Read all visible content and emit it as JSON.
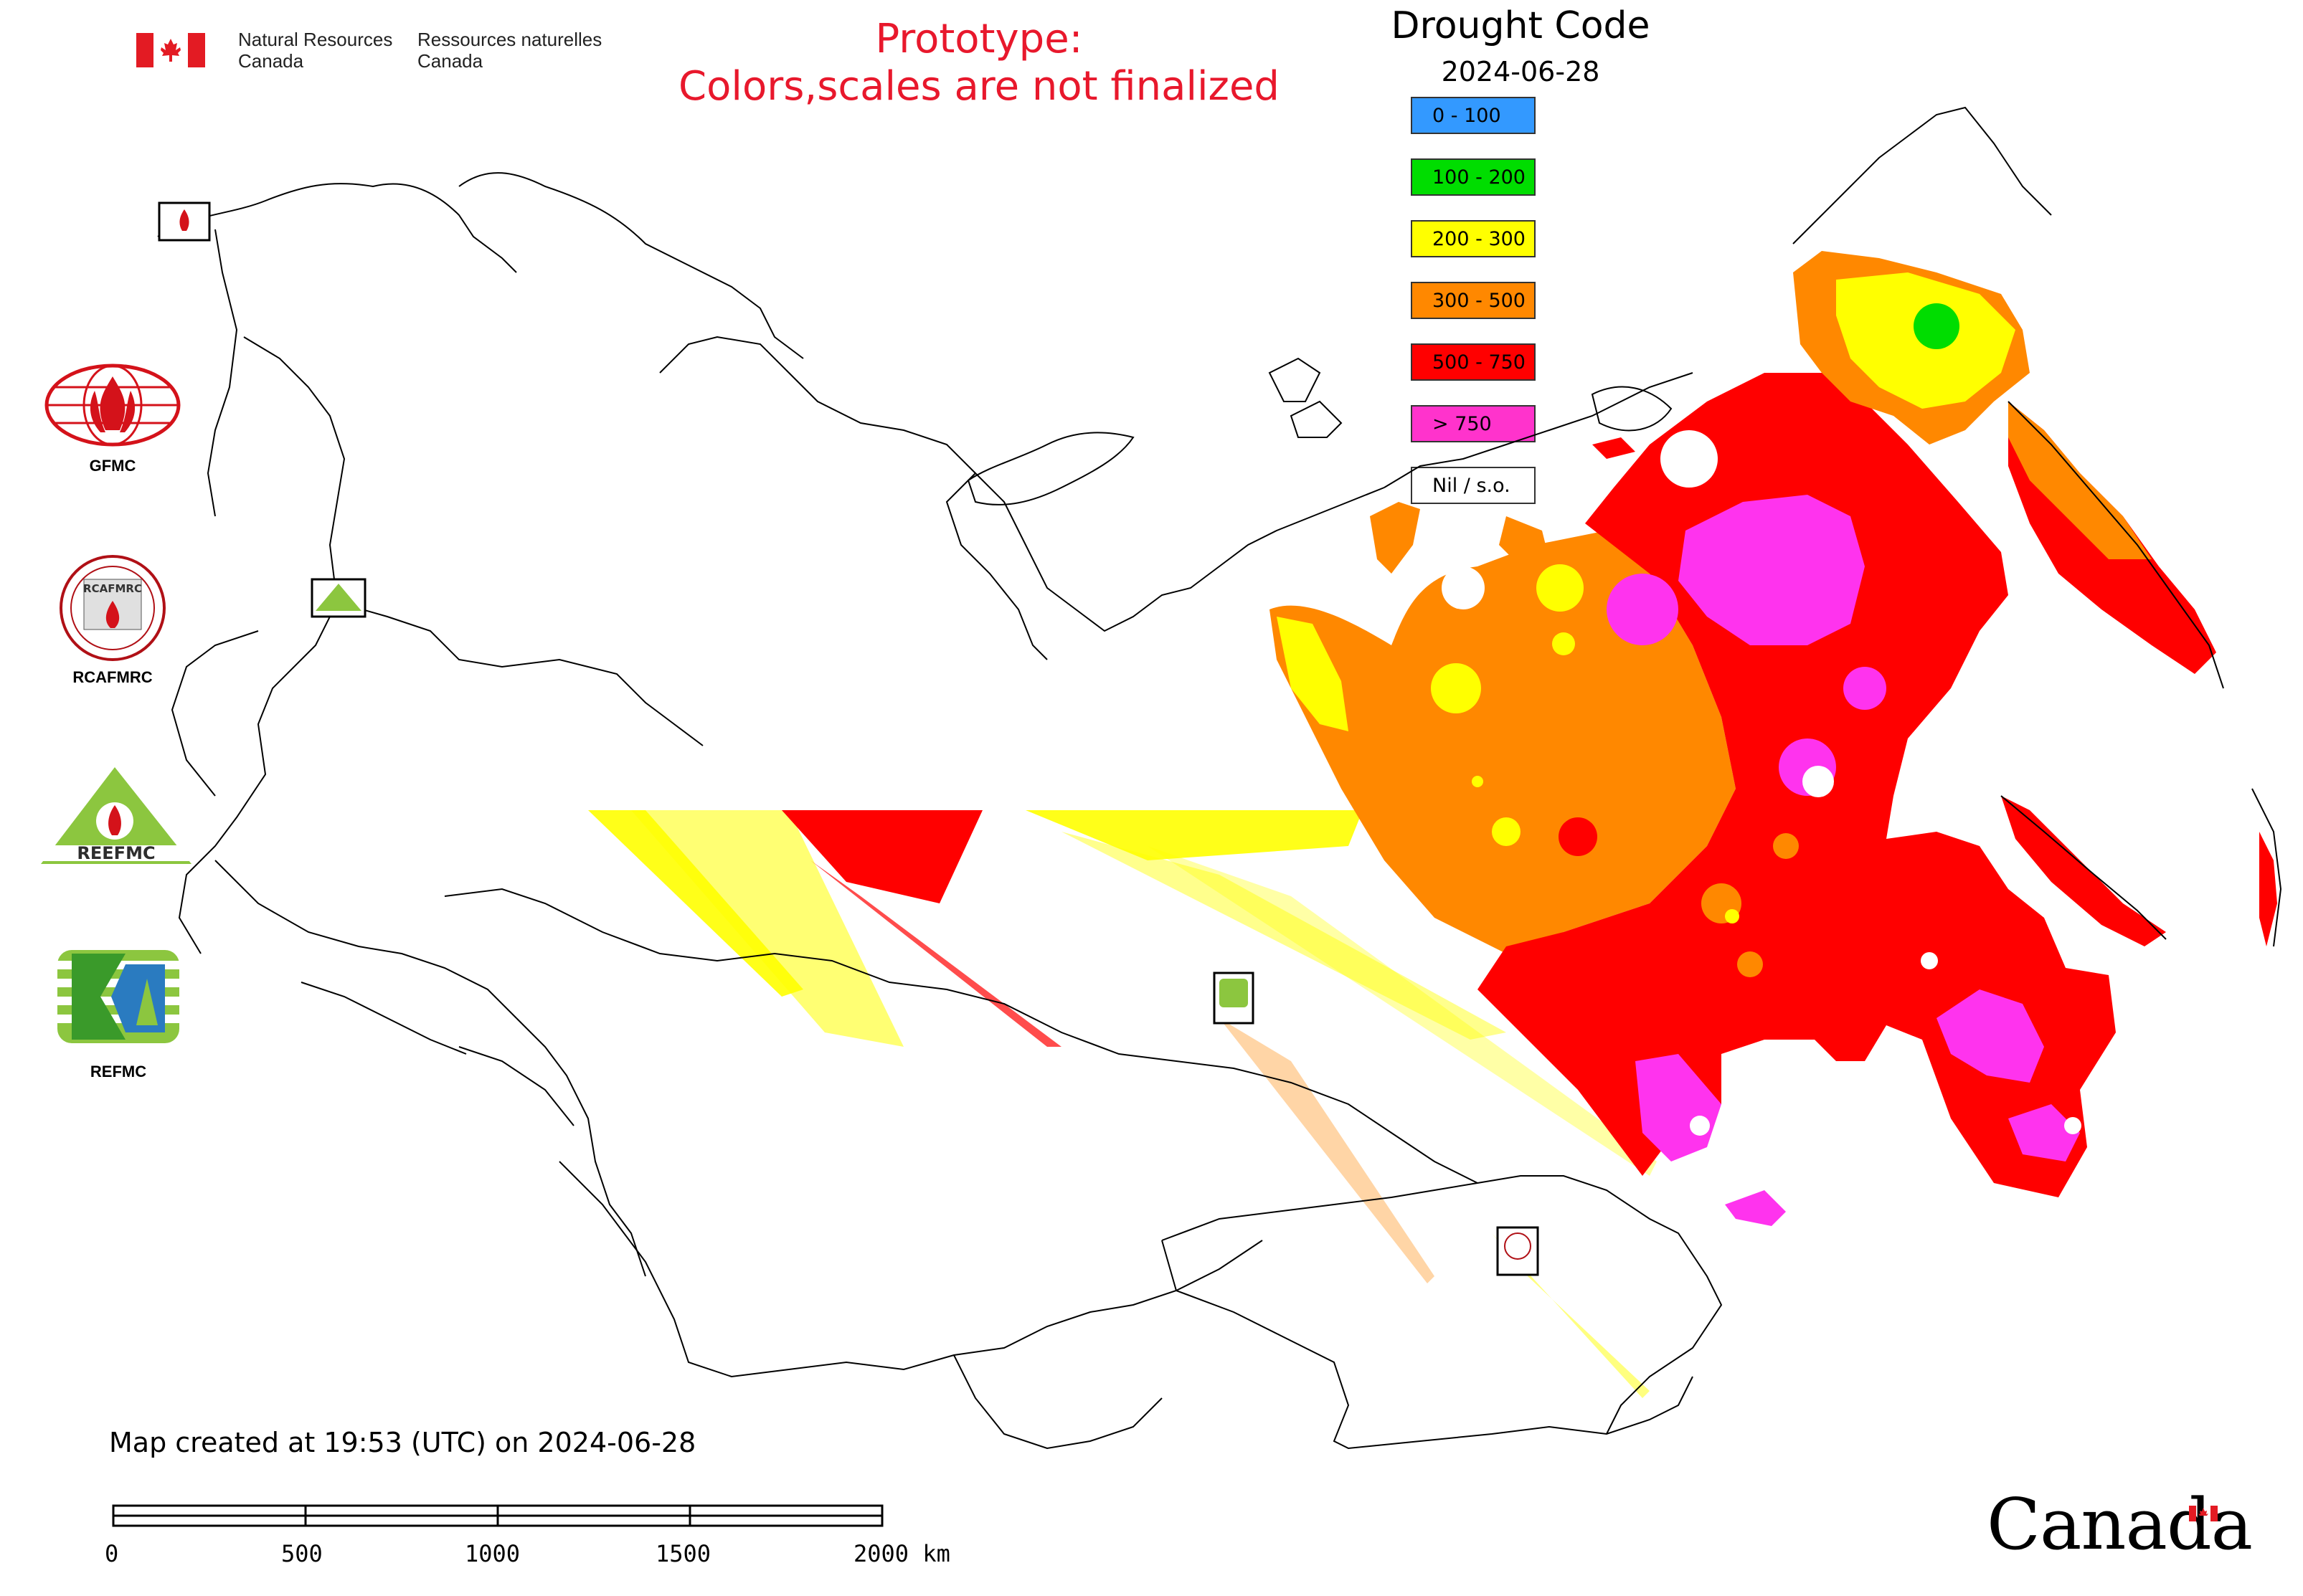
{
  "header": {
    "dept_en_line1": "Natural Resources",
    "dept_en_line2": "Canada",
    "dept_fr_line1": "Ressources naturelles",
    "dept_fr_line2": "Canada"
  },
  "prototype_notice": {
    "line1": "Prototype:",
    "line2": "Colors,scales are not finalized",
    "color": "#e8182c"
  },
  "legend": {
    "title": "Drought Code",
    "date": "2024-06-28",
    "items": [
      {
        "label": "0 - 100",
        "color": "#3399ff"
      },
      {
        "label": "100 - 200",
        "color": "#00dd00"
      },
      {
        "label": "200 - 300",
        "color": "#ffff00"
      },
      {
        "label": "300 - 500",
        "color": "#ff8800"
      },
      {
        "label": "500 - 750",
        "color": "#ff0000"
      },
      {
        "label": "> 750",
        "color": "#ff33cc"
      },
      {
        "label": "Nil / s.o.",
        "color": "#ffffff"
      }
    ]
  },
  "logos": [
    {
      "name": "GFMC",
      "label": "GFMC"
    },
    {
      "name": "RCAFMRC",
      "label": "RCAFMRC"
    },
    {
      "name": "REEFMC",
      "label": "REEFMC"
    },
    {
      "name": "REFMC",
      "label": "REFMC"
    }
  ],
  "logo_texts": {
    "rcafmrc_inner": "RCAFMRC",
    "reefmc_inner": "REEFMC"
  },
  "map_markers": [
    "GFMC",
    "REEFMC",
    "REFMC",
    "RCAFMRC"
  ],
  "footer": {
    "created": "Map created at 19:53 (UTC) on 2024-06-28",
    "scale_labels": [
      "0",
      "500",
      "1000",
      "1500",
      "2000 km"
    ],
    "wordmark": "Canada"
  }
}
